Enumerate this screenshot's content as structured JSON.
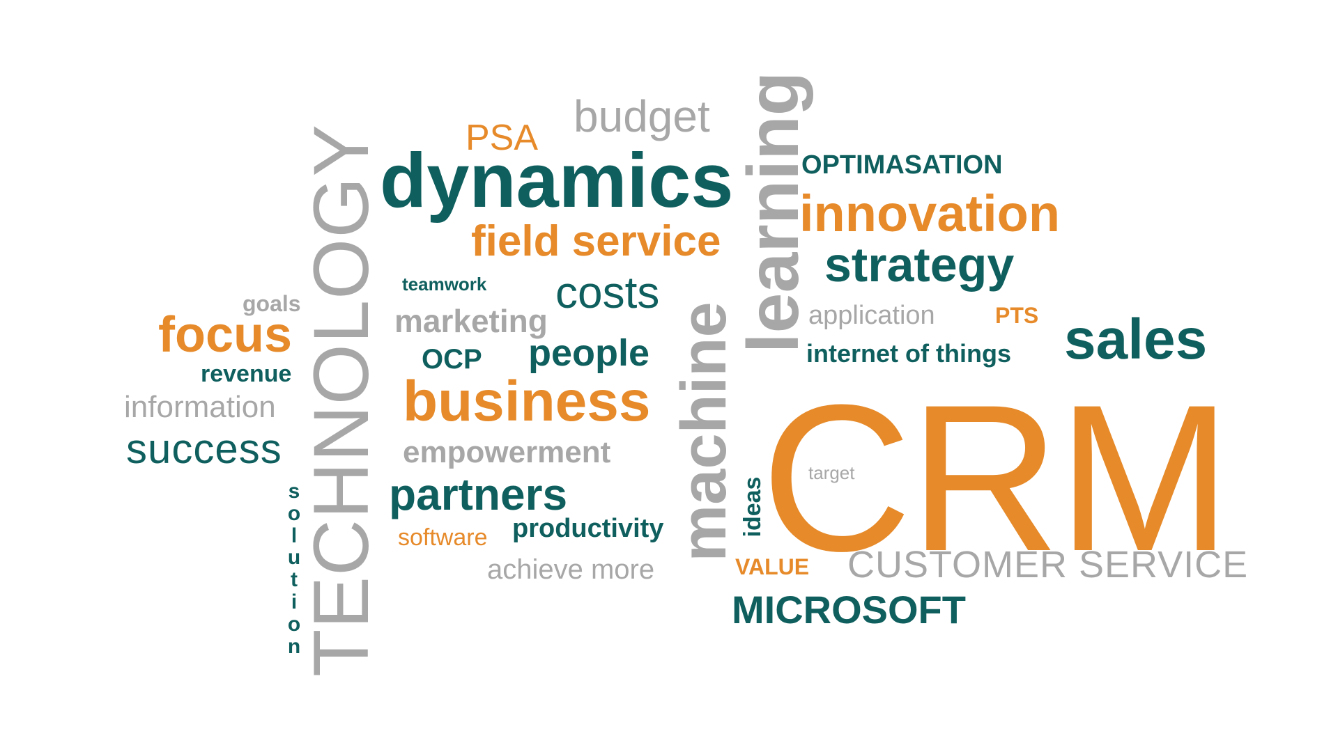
{
  "colors": {
    "teal": "#0f5f5e",
    "orange": "#e68a2a",
    "gray": "#a7a7a7",
    "background": "#ffffff"
  },
  "words": {
    "crm": "CRM",
    "technology": "TECHNOLOGY",
    "dynamics": "dynamics",
    "machine": "machine",
    "learning": "learning",
    "innovation": "innovation",
    "strategy": "strategy",
    "optimasation": "OPTIMASATION",
    "sales": "sales",
    "business": "business",
    "field_service": "field service",
    "budget": "budget",
    "psa": "PSA",
    "costs": "costs",
    "teamwork": "teamwork",
    "marketing": "marketing",
    "people": "people",
    "ocp": "OCP",
    "focus": "focus",
    "goals": "goals",
    "revenue": "revenue",
    "information": "information",
    "success": "success",
    "solution_letters": [
      "s",
      "o",
      "l",
      "u",
      "t",
      "i",
      "o",
      "n"
    ],
    "empowerment": "empowerment",
    "partners": "partners",
    "software": "software",
    "productivity": "productivity",
    "achieve_more": "achieve more",
    "application": "application",
    "pts": "PTS",
    "internet_of_things": "internet of things",
    "ideas": "ideas",
    "target": "target",
    "value": "VALUE",
    "customer_service": "CUSTOMER SERVICE",
    "microsoft": "MICROSOFT"
  }
}
